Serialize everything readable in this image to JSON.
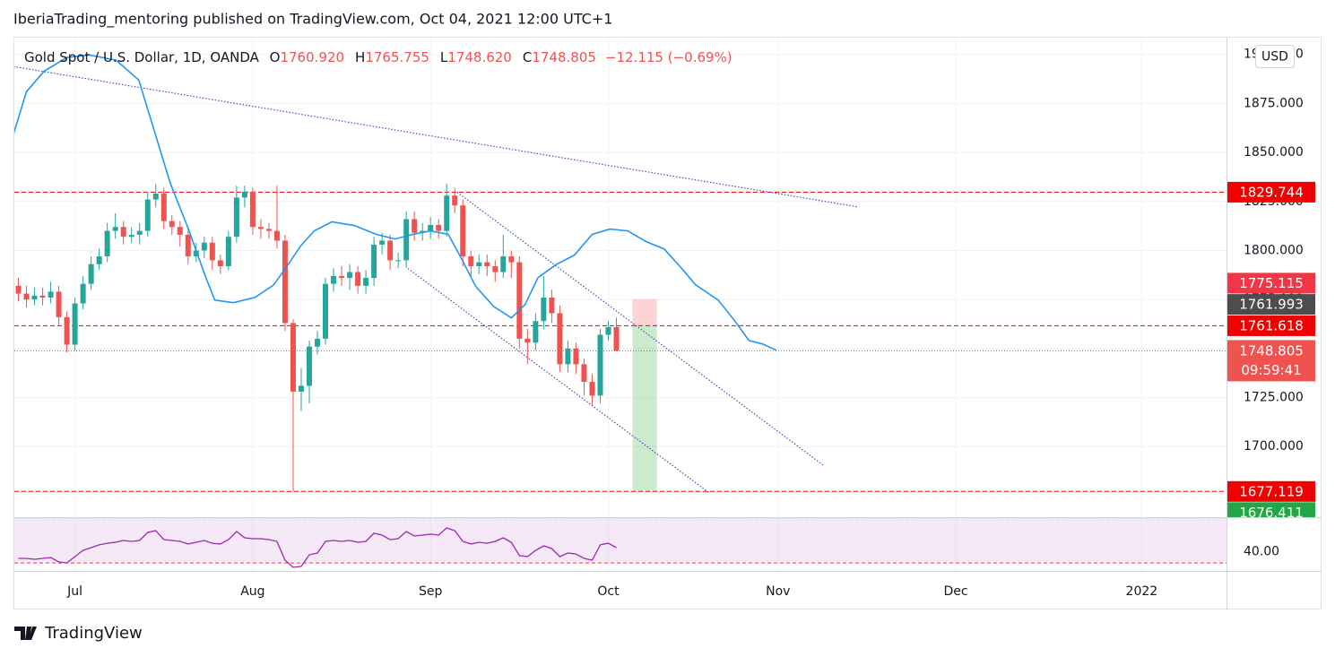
{
  "header": {
    "published": "IberiaTrading_mentoring published on TradingView.com, Oct 04, 2021 12:00 UTC+1"
  },
  "legend": {
    "symbol": "Gold Spot / U.S. Dollar, 1D, OANDA",
    "ohlc": [
      {
        "key": "O",
        "value": "1760.920"
      },
      {
        "key": "H",
        "value": "1765.755"
      },
      {
        "key": "L",
        "value": "1748.620"
      },
      {
        "key": "C",
        "value": "1748.805"
      }
    ],
    "change": "−12.115 (−0.69%)"
  },
  "currency": "USD",
  "footer": {
    "brand": "TradingView"
  },
  "chart_data": [
    {
      "type": "candlestick",
      "xlim": [
        -0.5,
        149.5
      ],
      "ylim": [
        1664,
        1909
      ],
      "xticks": [
        {
          "value": 7,
          "label": "Jul"
        },
        {
          "value": 29,
          "label": "Aug"
        },
        {
          "value": 51,
          "label": "Sep"
        },
        {
          "value": 73,
          "label": "Oct"
        },
        {
          "value": 94,
          "label": "Nov"
        },
        {
          "value": 116,
          "label": "Dec"
        },
        {
          "value": 139,
          "label": "2022"
        }
      ],
      "yticks": [
        {
          "value": 1900,
          "label": "1900.000"
        },
        {
          "value": 1875,
          "label": "1875.000"
        },
        {
          "value": 1850,
          "label": "1850.000"
        },
        {
          "value": 1825,
          "label": "1825.000"
        },
        {
          "value": 1800,
          "label": "1800.000"
        },
        {
          "value": 1775,
          "label": "1775.000"
        },
        {
          "value": 1750,
          "label": "1750.000"
        },
        {
          "value": 1725,
          "label": "1725.000"
        },
        {
          "value": 1700,
          "label": "1700.000"
        }
      ],
      "grid": true,
      "series": [
        {
          "up_color": "#26a69a",
          "down_color": "#ef5350",
          "open": [
            1782,
            1778,
            1775,
            1777,
            1776,
            1779,
            1766,
            1752,
            1773,
            1783,
            1793,
            1797,
            1810,
            1812,
            1807,
            1808,
            1810,
            1826,
            1829,
            1815,
            1812,
            1808,
            1797,
            1800,
            1804,
            1795,
            1792,
            1807,
            1827,
            1830,
            1812,
            1811,
            1810,
            1805,
            1763,
            1728,
            1731,
            1751,
            1755,
            1783,
            1787,
            1786,
            1789,
            1782,
            1786,
            1803,
            1805,
            1795,
            1795,
            1816,
            1809,
            1810,
            1813,
            1810,
            1828,
            1823,
            1797,
            1792,
            1794,
            1792,
            1789,
            1797,
            1794,
            1755,
            1753,
            1764,
            1776,
            1768,
            1742,
            1750,
            1742,
            1733,
            1726,
            1757,
            1760.92
          ],
          "high": [
            1786,
            1782,
            1781,
            1781,
            1784,
            1782,
            1769,
            1776,
            1787,
            1797,
            1801,
            1814,
            1819,
            1815,
            1812,
            1814,
            1830,
            1834,
            1832,
            1818,
            1815,
            1811,
            1804,
            1807,
            1807,
            1798,
            1810,
            1833,
            1833,
            1832,
            1816,
            1814,
            1833,
            1808,
            1765,
            1740,
            1754,
            1759,
            1786,
            1791,
            1792,
            1793,
            1792,
            1790,
            1807,
            1809,
            1808,
            1799,
            1820,
            1820,
            1814,
            1817,
            1816,
            1834,
            1832,
            1826,
            1800,
            1798,
            1798,
            1795,
            1808,
            1800,
            1797,
            1760,
            1768,
            1787,
            1780,
            1772,
            1754,
            1753,
            1745,
            1737,
            1760,
            1764,
            1765.755
          ],
          "low": [
            1774,
            1771,
            1772,
            1772,
            1773,
            1762,
            1748,
            1749,
            1770,
            1780,
            1790,
            1794,
            1806,
            1803,
            1804,
            1803,
            1807,
            1822,
            1811,
            1808,
            1802,
            1793,
            1794,
            1796,
            1790,
            1788,
            1790,
            1804,
            1822,
            1808,
            1806,
            1806,
            1801,
            1759,
            1677.2,
            1718,
            1722,
            1747,
            1752,
            1779,
            1782,
            1780,
            1778,
            1778,
            1782,
            1798,
            1790,
            1791,
            1791,
            1805,
            1805,
            1806,
            1806,
            1807,
            1819,
            1792,
            1787,
            1788,
            1787,
            1784,
            1786,
            1786,
            1750,
            1742,
            1749,
            1760,
            1763,
            1738,
            1738,
            1737,
            1726,
            1721,
            1722,
            1754,
            1748.62
          ],
          "close": [
            1778,
            1775,
            1777,
            1776,
            1779,
            1766,
            1752,
            1773,
            1783,
            1793,
            1797,
            1810,
            1812,
            1807,
            1808,
            1810,
            1826,
            1829,
            1815,
            1812,
            1808,
            1797,
            1800,
            1804,
            1795,
            1792,
            1807,
            1827,
            1830,
            1812,
            1811,
            1810,
            1805,
            1763,
            1728,
            1731,
            1751,
            1755,
            1783,
            1787,
            1786,
            1789,
            1782,
            1786,
            1803,
            1805,
            1795,
            1795,
            1816,
            1809,
            1810,
            1813,
            1810,
            1828,
            1823,
            1797,
            1792,
            1794,
            1792,
            1789,
            1797,
            1794,
            1755,
            1753,
            1764,
            1776,
            1768,
            1742,
            1750,
            1742,
            1733,
            1726,
            1757,
            1760.92,
            1748.805
          ]
        },
        {
          "type": "line",
          "color": "#2196f3",
          "x": [
            -0.6,
            1.0,
            3.2,
            6.0,
            8.8,
            12.1,
            14.9,
            16.6,
            18.8,
            21.0,
            23.2,
            24.3,
            26.6,
            29.3,
            31.6,
            33.2,
            34.9,
            36.6,
            38.8,
            41.6,
            44.3,
            46.6,
            48.8,
            51.0,
            53.2,
            54.9,
            56.6,
            58.8,
            61.0,
            62.7,
            64.3,
            66.6,
            68.8,
            71.0,
            73.2,
            75.4,
            77.7,
            79.9,
            82.1,
            83.8,
            86.6,
            88.8,
            90.4,
            92.1,
            93.8
          ],
          "values": [
            1859.4,
            1881.0,
            1891.5,
            1898.4,
            1899.7,
            1897.0,
            1886.9,
            1864.0,
            1834.2,
            1811.4,
            1786.2,
            1774.7,
            1773.4,
            1776.1,
            1782.5,
            1791.7,
            1802.2,
            1810.0,
            1814.6,
            1812.7,
            1808.2,
            1805.9,
            1808.2,
            1810.0,
            1808.2,
            1795.3,
            1781.6,
            1771.5,
            1765.6,
            1772.4,
            1786.2,
            1793.0,
            1797.6,
            1808.2,
            1810.9,
            1810.0,
            1804.5,
            1800.8,
            1790.8,
            1782.5,
            1774.7,
            1763.3,
            1754.1,
            1752.3,
            1749.1
          ]
        }
      ],
      "trend_lines": [
        {
          "color": "#3f51b5",
          "x": [
            -0.6,
            103.8
          ],
          "y": [
            1893.8,
            1822.3
          ]
        },
        {
          "color": "#3f51b5",
          "x": [
            54.3,
            99.6
          ],
          "y": [
            1829.7,
            1690.5
          ]
        },
        {
          "color": "#3f51b5",
          "x": [
            48.2,
            85.4
          ],
          "y": [
            1790.8,
            1676.7
          ]
        }
      ],
      "position": {
        "x": [
          76,
          79
        ],
        "entry": 1761.618,
        "stop": 1775.115,
        "target": 1677.119
      },
      "price_labels": [
        {
          "value": 1829.744,
          "color": "#f00000",
          "line": "dashed"
        },
        {
          "value": 1761.618,
          "color": "#f00000",
          "line": "dashed"
        },
        {
          "value": 1748.805,
          "color": "#ef5350",
          "line": "dotted",
          "countdown": "09:59:41"
        },
        {
          "value": 1677.119,
          "color": "#f00000",
          "line": "dashed"
        },
        {
          "value": 1775.115,
          "color": "#f23645"
        },
        {
          "value": 1761.993,
          "color": "#4d4d4d"
        },
        {
          "value": 1676.411,
          "color": "#22a746"
        }
      ]
    },
    {
      "type": "line",
      "color": "#9c27b0",
      "ylim": [
        23,
        70.5
      ],
      "yticks": [
        {
          "value": 40,
          "label": "40.00"
        }
      ],
      "band": [
        30,
        70
      ],
      "band_colors": [
        "#f23645",
        "#22a746"
      ],
      "values": [
        34.1,
        34.1,
        33.3,
        34.1,
        34.9,
        30.9,
        30.1,
        35.7,
        41.2,
        43.6,
        46.0,
        47.5,
        48.3,
        49.9,
        49.1,
        49.9,
        57.0,
        58.6,
        50.7,
        49.9,
        49.1,
        46.8,
        48.3,
        49.9,
        47.5,
        46.8,
        50.7,
        57.8,
        52.3,
        51.5,
        51.5,
        50.7,
        49.1,
        32.5,
        26.2,
        27.0,
        37.3,
        38.8,
        49.1,
        49.9,
        49.1,
        49.9,
        48.3,
        49.1,
        56.3,
        54.7,
        50.7,
        51.5,
        57.8,
        53.9,
        54.7,
        55.5,
        54.7,
        61.0,
        58.6,
        49.1,
        46.8,
        48.3,
        47.5,
        49.1,
        52.3,
        48.3,
        36.5,
        35.7,
        41.2,
        45.2,
        42.8,
        35.7,
        38.8,
        38.0,
        34.1,
        32.5,
        46.0,
        47.5,
        43.6
      ]
    }
  ]
}
